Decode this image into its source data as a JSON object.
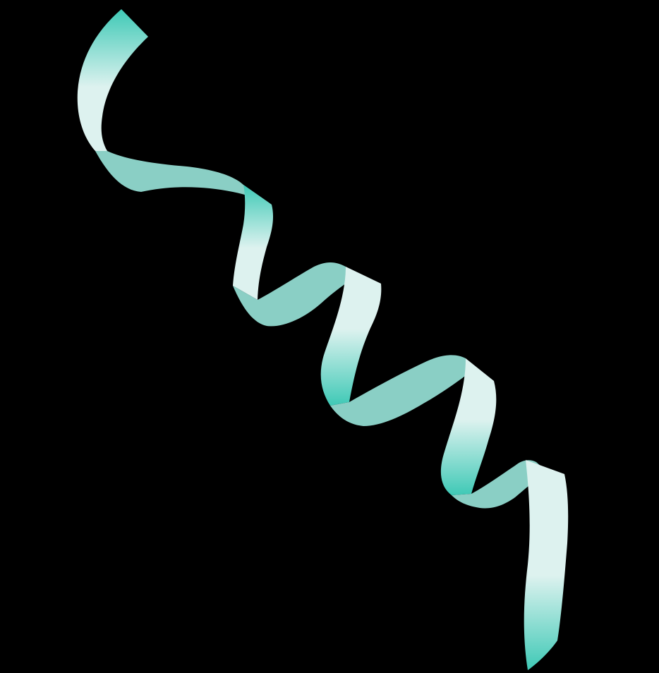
{
  "scene": {
    "background_color": "#000000",
    "subject": "ribbon-icon",
    "colors": {
      "teal": "#3FC9B6",
      "light": "#DDF2EF",
      "mid": "#8ACFC5"
    }
  }
}
